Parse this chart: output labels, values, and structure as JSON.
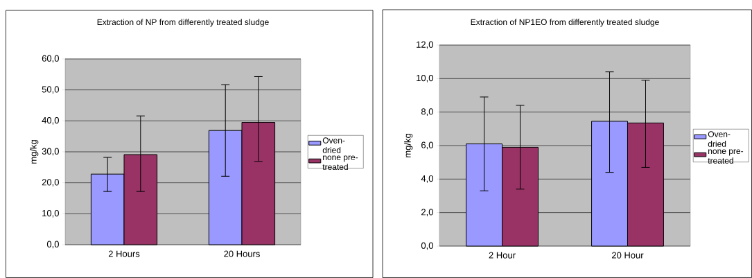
{
  "chart_data": [
    {
      "type": "bar",
      "title": "Extraction of NP  from differently treated sludge",
      "ylabel": "mg/kg",
      "categories": [
        "2 Hours",
        "20 Hours"
      ],
      "series": [
        {
          "name": "Oven-dried",
          "color": "#9999ff",
          "values": [
            22.8,
            36.9
          ],
          "errors": [
            [
              17.2,
              28.2
            ],
            [
              22.1,
              51.7
            ]
          ]
        },
        {
          "name": "none pre-treated",
          "color": "#993366",
          "values": [
            29.1,
            39.5
          ],
          "errors": [
            [
              17.2,
              41.6
            ],
            [
              26.9,
              54.3
            ]
          ]
        }
      ],
      "ylim": [
        0,
        60
      ],
      "yticks": [
        {
          "value": 0,
          "label": "0,0"
        },
        {
          "value": 10,
          "label": "10,0"
        },
        {
          "value": 20,
          "label": "20,0"
        },
        {
          "value": 30,
          "label": "30,0"
        },
        {
          "value": 40,
          "label": "40,0"
        },
        {
          "value": 50,
          "label": "50,0"
        },
        {
          "value": 60,
          "label": "60,0"
        }
      ],
      "grid": "y",
      "legend": "right"
    },
    {
      "type": "bar",
      "title": "Extraction of NP1EO  from differently treated sludge",
      "ylabel": "mg/kg",
      "categories": [
        "2 Hour",
        "20 Hour"
      ],
      "series": [
        {
          "name": "Oven-dried",
          "color": "#9999ff",
          "values": [
            6.1,
            7.45
          ],
          "errors": [
            [
              3.3,
              8.9
            ],
            [
              4.4,
              10.4
            ]
          ]
        },
        {
          "name": "none pre-treated",
          "color": "#993366",
          "values": [
            5.9,
            7.35
          ],
          "errors": [
            [
              3.4,
              8.4
            ],
            [
              4.7,
              9.9
            ]
          ]
        }
      ],
      "ylim": [
        0,
        12
      ],
      "yticks": [
        {
          "value": 0,
          "label": "0,0"
        },
        {
          "value": 2,
          "label": "2,0"
        },
        {
          "value": 4,
          "label": "4,0"
        },
        {
          "value": 6,
          "label": "6,0"
        },
        {
          "value": 8,
          "label": "8,0"
        },
        {
          "value": 10,
          "label": "10,0"
        },
        {
          "value": 12,
          "label": "12,0"
        }
      ],
      "grid": "y",
      "legend": "right"
    }
  ]
}
